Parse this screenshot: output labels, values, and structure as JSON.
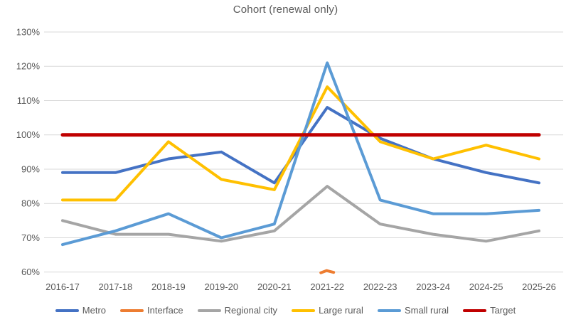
{
  "title": "Cohort (renewal only)",
  "chart_data": {
    "type": "line",
    "title": "Cohort (renewal only)",
    "categories": [
      "2016-17",
      "2017-18",
      "2018-19",
      "2019-20",
      "2020-21",
      "2021-22",
      "2022-23",
      "2023-24",
      "2024-25",
      "2025-26"
    ],
    "series": [
      {
        "name": "Metro",
        "color": "#4472C4",
        "values": [
          89,
          89,
          93,
          95,
          86,
          108,
          99,
          93,
          89,
          86
        ]
      },
      {
        "name": "Interface",
        "color": "#ED7D31",
        "values": [
          null,
          null,
          null,
          null,
          null,
          60,
          null,
          null,
          null,
          null
        ]
      },
      {
        "name": "Regional city",
        "color": "#A5A5A5",
        "values": [
          75,
          71,
          71,
          69,
          72,
          85,
          74,
          71,
          69,
          72
        ]
      },
      {
        "name": "Large rural",
        "color": "#FFC000",
        "values": [
          81,
          81,
          98,
          87,
          84,
          114,
          98,
          93,
          97,
          93
        ]
      },
      {
        "name": "Small rural",
        "color": "#5B9BD5",
        "values": [
          68,
          72,
          77,
          70,
          74,
          121,
          81,
          77,
          77,
          78
        ]
      },
      {
        "name": "Target",
        "color": "#C00000",
        "values": [
          100,
          100,
          100,
          100,
          100,
          100,
          100,
          100,
          100,
          100
        ]
      }
    ],
    "ylim": [
      60,
      130
    ],
    "ytick_values": [
      130,
      120,
      110,
      100,
      90,
      80,
      70,
      60
    ],
    "ytick_labels": [
      "130%",
      "120%",
      "110%",
      "100%",
      "90%",
      "80%",
      "70%",
      "60%"
    ],
    "xlabel": "",
    "ylabel": "",
    "grid": "horizontal",
    "gridline_color": "#D9D9D9",
    "axis_text_color": "#595959",
    "legend_position": "bottom"
  }
}
